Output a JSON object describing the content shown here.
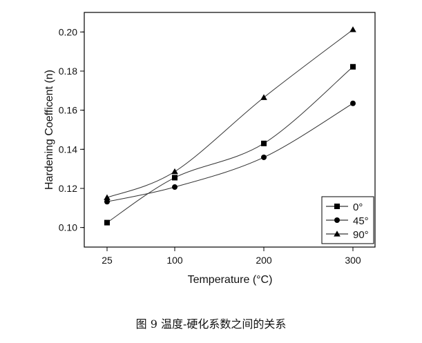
{
  "caption": "图 9  温度-硬化系数之间的关系",
  "chart_data": {
    "type": "line",
    "xlabel": "Temperature (°C)",
    "ylabel": "Hardening Coefficent (n)",
    "x": [
      25,
      100,
      200,
      300
    ],
    "x_tick_labels": [
      "25",
      "100",
      "200",
      "300"
    ],
    "ylim": [
      0.09,
      0.21
    ],
    "y_ticks": [
      0.1,
      0.12,
      0.14,
      0.16,
      0.18,
      0.2
    ],
    "y_tick_labels": [
      "0.10",
      "0.12",
      "0.14",
      "0.16",
      "0.18",
      "0.20"
    ],
    "grid": false,
    "legend_position": "bottom-right",
    "series": [
      {
        "name": "0°",
        "marker": "square",
        "values": [
          0.1025,
          0.1255,
          0.143,
          0.1822
        ]
      },
      {
        "name": "45°",
        "marker": "circle",
        "values": [
          0.1132,
          0.1207,
          0.1359,
          0.1635
        ]
      },
      {
        "name": "90°",
        "marker": "triangle",
        "values": [
          0.1153,
          0.1286,
          0.1665,
          0.2012
        ]
      }
    ]
  }
}
